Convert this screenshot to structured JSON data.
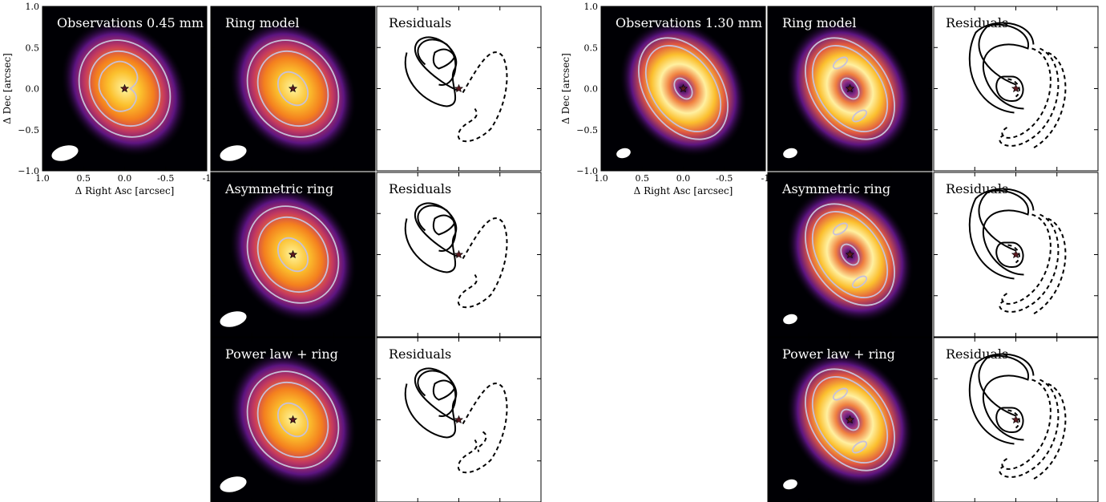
{
  "figure": {
    "groups": [
      {
        "id": "obs045",
        "obs_title": "Observations 0.45 mm",
        "xlabel": "Δ Right Asc [arcsec]",
        "ylabel": "Δ Dec [arcsec]",
        "xticks": [
          "1.0",
          "0.5",
          "0.0",
          "-0.5",
          "-1"
        ],
        "yticks": [
          "1.0",
          "0.5",
          "0.0",
          "−0.5",
          "−1.0"
        ],
        "models": [
          {
            "name": "Ring model",
            "residual": "Residuals"
          },
          {
            "name": "Asymmetric ring",
            "residual": "Residuals"
          },
          {
            "name": "Power law + ring",
            "residual": "Residuals"
          }
        ]
      },
      {
        "id": "obs130",
        "obs_title": "Observations 1.30 mm",
        "xlabel": "Δ Right Asc [arcsec]",
        "ylabel": "Δ Dec [arcsec]",
        "xticks": [
          "1.0",
          "0.5",
          "0.0",
          "-0.5",
          "-1"
        ],
        "yticks": [
          "1.0",
          "0.5",
          "0.0",
          "−0.5",
          "−1.0"
        ],
        "models": [
          {
            "name": "Ring model",
            "residual": "Residuals"
          },
          {
            "name": "Asymmetric ring",
            "residual": "Residuals"
          },
          {
            "name": "Power law + ring",
            "residual": "Residuals"
          }
        ]
      }
    ]
  },
  "colors": {
    "background": "#000004",
    "contour": "#c8c0d8",
    "star": "#5a1a20",
    "beam": "#ffffff",
    "residual_line": "#000000"
  }
}
